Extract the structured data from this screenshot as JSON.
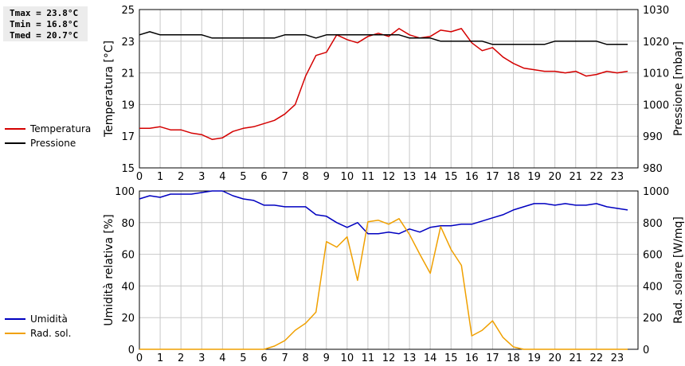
{
  "stats": {
    "tmax": "Tmax = 23.8°C",
    "tmin": "Tmin = 16.8°C",
    "tmed": "Tmed = 20.7°C"
  },
  "legend_top": [
    {
      "label": "Temperatura",
      "color": "#d40000"
    },
    {
      "label": "Pressione",
      "color": "#000000"
    }
  ],
  "legend_bottom": [
    {
      "label": "Umidità",
      "color": "#0000c0"
    },
    {
      "label": "Rad. sol.",
      "color": "#f0a000"
    }
  ],
  "chart_data": [
    {
      "type": "line",
      "xlim": [
        0,
        24
      ],
      "xticks": [
        0,
        1,
        2,
        3,
        4,
        5,
        6,
        7,
        8,
        9,
        10,
        11,
        12,
        13,
        14,
        15,
        16,
        17,
        18,
        19,
        20,
        21,
        22,
        23
      ],
      "left_axis": {
        "label": "Temperatura [°C]",
        "ylim": [
          15,
          25
        ],
        "ticks": [
          15,
          17,
          19,
          21,
          23,
          25
        ]
      },
      "right_axis": {
        "label": "Pressione [mbar]",
        "ylim": [
          980,
          1030
        ],
        "ticks": [
          980,
          990,
          1000,
          1010,
          1020,
          1030
        ]
      },
      "grid": true,
      "series": [
        {
          "name": "Temperatura",
          "axis": "left",
          "color": "#d40000",
          "x": [
            0,
            0.5,
            1,
            1.5,
            2,
            2.5,
            3,
            3.5,
            4,
            4.5,
            5,
            5.5,
            6,
            6.5,
            7,
            7.5,
            8,
            8.5,
            9,
            9.5,
            10,
            10.5,
            11,
            11.5,
            12,
            12.5,
            13,
            13.5,
            14,
            14.5,
            15,
            15.5,
            16,
            16.5,
            17,
            17.5,
            18,
            18.5,
            19,
            19.5,
            20,
            20.5,
            21,
            21.5,
            22,
            22.5,
            23,
            23.5
          ],
          "y": [
            17.5,
            17.5,
            17.6,
            17.4,
            17.4,
            17.2,
            17.1,
            16.8,
            16.9,
            17.3,
            17.5,
            17.6,
            17.8,
            18.0,
            18.4,
            19.0,
            20.8,
            22.1,
            22.3,
            23.4,
            23.1,
            22.9,
            23.3,
            23.5,
            23.3,
            23.8,
            23.4,
            23.2,
            23.3,
            23.7,
            23.6,
            23.8,
            22.9,
            22.4,
            22.6,
            22.0,
            21.6,
            21.3,
            21.2,
            21.1,
            21.1,
            21.0,
            21.1,
            20.8,
            20.9,
            21.1,
            21.0,
            21.1
          ]
        },
        {
          "name": "Pressione",
          "axis": "right",
          "color": "#000000",
          "x": [
            0,
            0.5,
            1,
            1.5,
            2,
            2.5,
            3,
            3.5,
            4,
            4.5,
            5,
            5.5,
            6,
            6.5,
            7,
            7.5,
            8,
            8.5,
            9,
            9.5,
            10,
            10.5,
            11,
            11.5,
            12,
            12.5,
            13,
            13.5,
            14,
            14.5,
            15,
            15.5,
            16,
            16.5,
            17,
            17.5,
            18,
            18.5,
            19,
            19.5,
            20,
            20.5,
            21,
            21.5,
            22,
            22.5,
            23,
            23.5
          ],
          "y": [
            1022,
            1023,
            1022,
            1022,
            1022,
            1022,
            1022,
            1021,
            1021,
            1021,
            1021,
            1021,
            1021,
            1021,
            1022,
            1022,
            1022,
            1021,
            1022,
            1022,
            1022,
            1022,
            1022,
            1022,
            1022,
            1022,
            1021,
            1021,
            1021,
            1020,
            1020,
            1020,
            1020,
            1020,
            1019,
            1019,
            1019,
            1019,
            1019,
            1019,
            1020,
            1020,
            1020,
            1020,
            1020,
            1019,
            1019,
            1019
          ]
        }
      ]
    },
    {
      "type": "line",
      "xlim": [
        0,
        24
      ],
      "xticks": [
        0,
        1,
        2,
        3,
        4,
        5,
        6,
        7,
        8,
        9,
        10,
        11,
        12,
        13,
        14,
        15,
        16,
        17,
        18,
        19,
        20,
        21,
        22,
        23
      ],
      "left_axis": {
        "label": "Umidità relativa [%]",
        "ylim": [
          0,
          100
        ],
        "ticks": [
          0,
          20,
          40,
          60,
          80,
          100
        ]
      },
      "right_axis": {
        "label": "Rad. solare [W/mq]",
        "ylim": [
          0,
          1000
        ],
        "ticks": [
          0,
          200,
          400,
          600,
          800,
          1000
        ]
      },
      "grid": true,
      "series": [
        {
          "name": "Umidità",
          "axis": "left",
          "color": "#0000c0",
          "x": [
            0,
            0.5,
            1,
            1.5,
            2,
            2.5,
            3,
            3.5,
            4,
            4.5,
            5,
            5.5,
            6,
            6.5,
            7,
            7.5,
            8,
            8.5,
            9,
            9.5,
            10,
            10.5,
            11,
            11.5,
            12,
            12.5,
            13,
            13.5,
            14,
            14.5,
            15,
            15.5,
            16,
            16.5,
            17,
            17.5,
            18,
            18.5,
            19,
            19.5,
            20,
            20.5,
            21,
            21.5,
            22,
            22.5,
            23,
            23.5
          ],
          "y": [
            95,
            97,
            96,
            98,
            98,
            98,
            99,
            100,
            100,
            97,
            95,
            94,
            91,
            91,
            90,
            90,
            90,
            85,
            84,
            80,
            77,
            80,
            73,
            73,
            74,
            73,
            76,
            74,
            77,
            78,
            78,
            79,
            79,
            81,
            83,
            85,
            88,
            90,
            92,
            92,
            91,
            92,
            91,
            91,
            92,
            90,
            89,
            88
          ]
        },
        {
          "name": "Rad. sol.",
          "axis": "right",
          "color": "#f0a000",
          "x": [
            0,
            0.5,
            1,
            1.5,
            2,
            2.5,
            3,
            3.5,
            4,
            4.5,
            5,
            5.5,
            6,
            6.5,
            7,
            7.5,
            8,
            8.5,
            9,
            9.5,
            10,
            10.5,
            11,
            11.5,
            12,
            12.5,
            13,
            13.5,
            14,
            14.5,
            15,
            15.5,
            16,
            16.5,
            17,
            17.5,
            18,
            18.5,
            19,
            19.5,
            20,
            20.5,
            21,
            21.5,
            22,
            22.5,
            23,
            23.5
          ],
          "y": [
            0,
            0,
            0,
            0,
            0,
            0,
            0,
            0,
            0,
            0,
            0,
            0,
            0,
            20,
            55,
            120,
            165,
            235,
            680,
            645,
            710,
            435,
            805,
            815,
            790,
            825,
            725,
            600,
            480,
            775,
            630,
            530,
            85,
            120,
            180,
            75,
            15,
            0,
            0,
            0,
            0,
            0,
            0,
            0,
            0,
            0,
            0,
            0
          ]
        }
      ]
    }
  ]
}
